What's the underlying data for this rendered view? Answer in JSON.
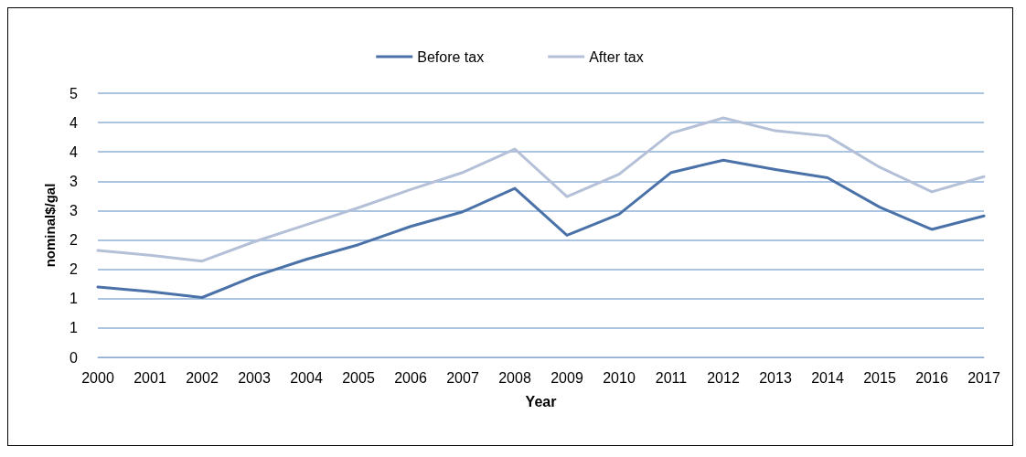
{
  "chart_data": {
    "type": "line",
    "xlabel": "Year",
    "ylabel": "nominal$/gal",
    "categories": [
      "2000",
      "2001",
      "2002",
      "2003",
      "2004",
      "2005",
      "2006",
      "2007",
      "2008",
      "2009",
      "2010",
      "2011",
      "2012",
      "2013",
      "2014",
      "2015",
      "2016",
      "2017"
    ],
    "series": [
      {
        "name": "Before tax",
        "color": "#4a72a8",
        "values": [
          1.2,
          1.12,
          1.02,
          1.38,
          1.67,
          1.92,
          2.23,
          2.48,
          2.88,
          2.08,
          2.44,
          3.15,
          3.36,
          3.2,
          3.06,
          2.56,
          2.18,
          2.41
        ]
      },
      {
        "name": "After tax",
        "color": "#b4c0d8",
        "values": [
          1.82,
          1.74,
          1.64,
          1.97,
          2.26,
          2.55,
          2.86,
          3.15,
          3.55,
          2.74,
          3.12,
          3.82,
          4.08,
          3.86,
          3.77,
          3.24,
          2.82,
          3.08
        ]
      }
    ],
    "ylim": [
      0,
      4.5
    ],
    "yticks": [
      0,
      {
        "value": 0.5,
        "label": "1"
      },
      1,
      {
        "value": 1.5,
        "label": "2"
      },
      2,
      {
        "value": 2.5,
        "label": "3"
      },
      3,
      {
        "value": 3.5,
        "label": "4"
      },
      4,
      {
        "value": 4.5,
        "label": "5"
      }
    ],
    "grid": "y",
    "legend": "top",
    "marker": "none",
    "line_style": "solid"
  }
}
